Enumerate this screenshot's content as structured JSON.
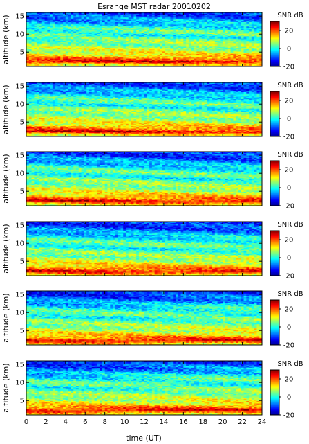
{
  "chart_data": {
    "type": "heatmap",
    "title": "Esrange MST radar 20010202",
    "xlabel": "time (UT)",
    "ylabel": "altitude (km)",
    "colorbar_label": "SNR dB",
    "xlim": [
      0,
      24
    ],
    "ylim": [
      1,
      16
    ],
    "clim": [
      -20,
      30
    ],
    "colormap": "jet",
    "x_ticks": [
      0,
      2,
      4,
      6,
      8,
      10,
      12,
      14,
      16,
      18,
      20,
      22,
      24
    ],
    "y_ticks": [
      5,
      10,
      15
    ],
    "colorbar_ticks": [
      -20,
      0,
      20
    ],
    "panel_count": 6,
    "altitude_profile_db": [
      {
        "altitude_km": 1.5,
        "snr_db": 12
      },
      {
        "altitude_km": 2.3,
        "snr_db": 25
      },
      {
        "altitude_km": 3.0,
        "snr_db": 19
      },
      {
        "altitude_km": 4.0,
        "snr_db": 13
      },
      {
        "altitude_km": 5.0,
        "snr_db": 9
      },
      {
        "altitude_km": 6.5,
        "snr_db": 6
      },
      {
        "altitude_km": 8.0,
        "snr_db": 4
      },
      {
        "altitude_km": 9.0,
        "snr_db": 0
      },
      {
        "altitude_km": 10.0,
        "snr_db": 3
      },
      {
        "altitude_km": 11.5,
        "snr_db": 0
      },
      {
        "altitude_km": 13.0,
        "snr_db": -5
      },
      {
        "altitude_km": 14.5,
        "snr_db": -9
      },
      {
        "altitude_km": 16.0,
        "snr_db": -12
      }
    ]
  }
}
